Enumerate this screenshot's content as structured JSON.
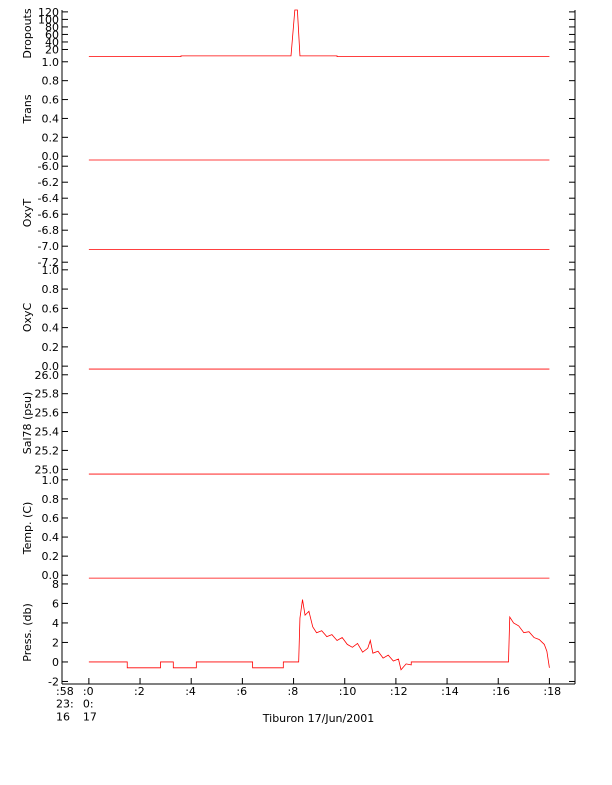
{
  "chart_data": [
    {
      "type": "line",
      "ylabel": "Dropouts",
      "ylim": [
        0,
        125
      ],
      "yticks": [
        20,
        40,
        60,
        80,
        100,
        120
      ],
      "x": [
        0,
        3.6,
        3.6,
        7.9,
        8.05,
        8.15,
        8.25,
        9.7,
        9.7,
        18
      ],
      "series": [
        {
          "color": "#ff0000",
          "values": [
            1,
            1,
            3,
            3,
            125,
            125,
            3,
            3,
            1,
            1
          ]
        }
      ]
    },
    {
      "type": "line",
      "ylabel": "Trans",
      "ylim": [
        -0.04,
        1.04
      ],
      "yticks": [
        {
          "value": 0,
          "label": "0.0"
        },
        0.2,
        0.4,
        0.6,
        0.8,
        {
          "value": 1,
          "label": "1.0"
        }
      ],
      "x": [
        0,
        18
      ],
      "series": [
        {
          "color": "#ff0000",
          "values": [
            -0.04,
            -0.04
          ]
        }
      ]
    },
    {
      "type": "line",
      "ylabel": "OxyT",
      "ylim": [
        -7.21,
        -5.96
      ],
      "yticks": [
        {
          "value": -7.2,
          "label": "-7.2"
        },
        {
          "value": -7,
          "label": "-7.0"
        },
        -6.8,
        -6.6,
        -6.4,
        -6.2,
        {
          "value": -6,
          "label": "-6.0"
        }
      ],
      "x": [
        0,
        18
      ],
      "series": [
        {
          "color": "#ff0000",
          "values": [
            -7.04,
            -7.04
          ]
        }
      ]
    },
    {
      "type": "line",
      "ylabel": "OxyC",
      "ylim": [
        -0.04,
        1.05
      ],
      "yticks": [
        {
          "value": 0,
          "label": "0.0"
        },
        0.2,
        0.4,
        0.6,
        0.8,
        {
          "value": 1,
          "label": "1.0"
        }
      ],
      "x": [
        0,
        18
      ],
      "series": [
        {
          "color": "#ff0000",
          "values": [
            -0.03,
            -0.03
          ]
        }
      ]
    },
    {
      "type": "line",
      "ylabel": "Sal78 (psu)",
      "ylim": [
        24.94,
        26.04
      ],
      "yticks": [
        {
          "value": 25,
          "label": "25.0"
        },
        25.2,
        25.4,
        25.6,
        25.8,
        {
          "value": 26,
          "label": "26.0"
        }
      ],
      "x": [
        0,
        18
      ],
      "series": [
        {
          "color": "#ff0000",
          "values": [
            24.95,
            24.95
          ]
        }
      ]
    },
    {
      "type": "line",
      "ylabel": "Temp. (C)",
      "ylim": [
        -0.05,
        1.04
      ],
      "yticks": [
        {
          "value": 0,
          "label": "0.0"
        },
        0.2,
        0.4,
        0.6,
        0.8,
        {
          "value": 1,
          "label": "1.0"
        }
      ],
      "x": [
        0,
        18
      ],
      "series": [
        {
          "color": "#ff0000",
          "values": [
            -0.03,
            -0.03
          ]
        }
      ]
    },
    {
      "type": "line",
      "ylabel": "Press. (db)",
      "ylim": [
        -2.26,
        8.3
      ],
      "yticks": [
        -2,
        0,
        2,
        4,
        6,
        8
      ],
      "xlabel": "Tiburon 17/Jun/2001",
      "xlim": [
        -1.05,
        19.0
      ],
      "xticks": [
        {
          "value": -1.05,
          "label": ":58\n23:\n16"
        },
        {
          "value": 0,
          "label": ":0\n0:\n17"
        },
        {
          "value": 2,
          "label": ":2"
        },
        {
          "value": 4,
          "label": ":4"
        },
        {
          "value": 6,
          "label": ":6"
        },
        {
          "value": 8,
          "label": ":8"
        },
        {
          "value": 10,
          "label": ":10"
        },
        {
          "value": 12,
          "label": ":12"
        },
        {
          "value": 14,
          "label": ":14"
        },
        {
          "value": 16,
          "label": ":16"
        },
        {
          "value": 18,
          "label": ":18"
        }
      ],
      "x": [
        0,
        1.5,
        1.5,
        2.8,
        2.8,
        3.3,
        3.3,
        4.2,
        4.2,
        6.4,
        6.4,
        7.6,
        7.6,
        8.2,
        8.25,
        8.35,
        8.45,
        8.6,
        8.75,
        8.9,
        9.1,
        9.3,
        9.5,
        9.7,
        9.9,
        10.1,
        10.3,
        10.5,
        10.7,
        10.9,
        11.0,
        11.1,
        11.3,
        11.5,
        11.7,
        11.9,
        12.1,
        12.2,
        12.4,
        12.6,
        12.6,
        16.4,
        16.45,
        16.6,
        16.8,
        17.0,
        17.2,
        17.4,
        17.6,
        17.8,
        17.9,
        18.0
      ],
      "series": [
        {
          "color": "#ff0000",
          "values": [
            0,
            0,
            -0.6,
            -0.6,
            0,
            0,
            -0.6,
            -0.6,
            0,
            0,
            -0.6,
            -0.6,
            0,
            0,
            4.5,
            6.4,
            4.8,
            5.2,
            3.6,
            3.0,
            3.2,
            2.6,
            2.8,
            2.2,
            2.5,
            1.8,
            1.5,
            1.9,
            1.0,
            1.4,
            2.2,
            0.9,
            1.1,
            0.4,
            0.7,
            0.1,
            0.3,
            -0.8,
            -0.2,
            -0.3,
            0,
            0,
            4.6,
            4.0,
            3.7,
            3.0,
            3.1,
            2.5,
            2.3,
            1.8,
            1.1,
            -0.6
          ]
        }
      ]
    }
  ]
}
